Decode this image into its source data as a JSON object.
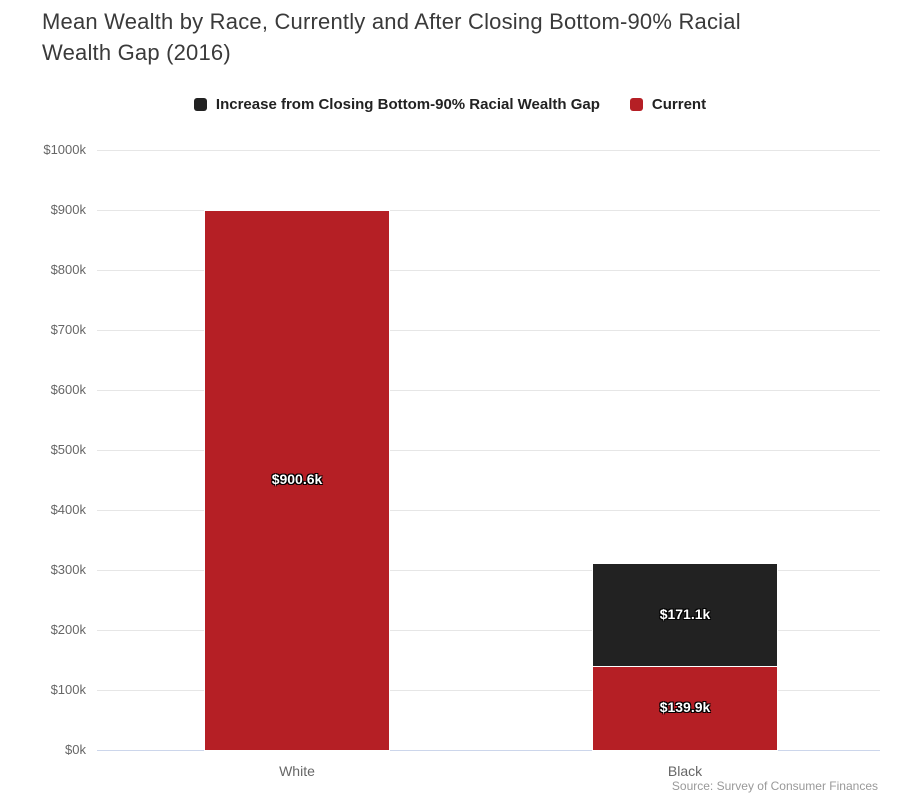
{
  "title": "Mean Wealth by Race, Currently and After Closing Bottom-90% Racial Wealth Gap (2016)",
  "source": "Source: Survey of Consumer Finances",
  "legend": {
    "items": [
      {
        "label": "Increase from Closing Bottom-90% Racial Wealth Gap",
        "color": "#222222",
        "key": "increase"
      },
      {
        "label": "Current",
        "color": "#b51f25",
        "key": "current"
      }
    ]
  },
  "chart_data": {
    "type": "bar",
    "stacked": true,
    "title": "Mean Wealth by Race, Currently and After Closing Bottom-90% Racial Wealth Gap (2016)",
    "categories": [
      "White",
      "Black"
    ],
    "series": [
      {
        "name": "Current",
        "key": "current",
        "color": "#b51f25",
        "values": [
          900.6,
          139.9
        ],
        "data_labels": [
          "$900.6k",
          "$139.9k"
        ]
      },
      {
        "name": "Increase from Closing Bottom-90% Racial Wealth Gap",
        "key": "increase",
        "color": "#222222",
        "values": [
          0,
          171.1
        ],
        "data_labels": [
          "",
          "$171.1k"
        ]
      }
    ],
    "xlabel": "",
    "ylabel": "",
    "ylim": [
      0,
      1000
    ],
    "ytick_step": 100,
    "ytick_labels": [
      "$0k",
      "$100k",
      "$200k",
      "$300k",
      "$400k",
      "$500k",
      "$600k",
      "$700k",
      "$800k",
      "$900k",
      "$1000k"
    ],
    "grid": true,
    "legend_position": "top"
  },
  "colors": {
    "current": "#b51f25",
    "increase": "#222222",
    "gridline": "#e6e6e6",
    "axis_line": "#ccd6eb",
    "axis_label": "#666666",
    "title_text": "#3a3a3a",
    "source_text": "#999999"
  }
}
